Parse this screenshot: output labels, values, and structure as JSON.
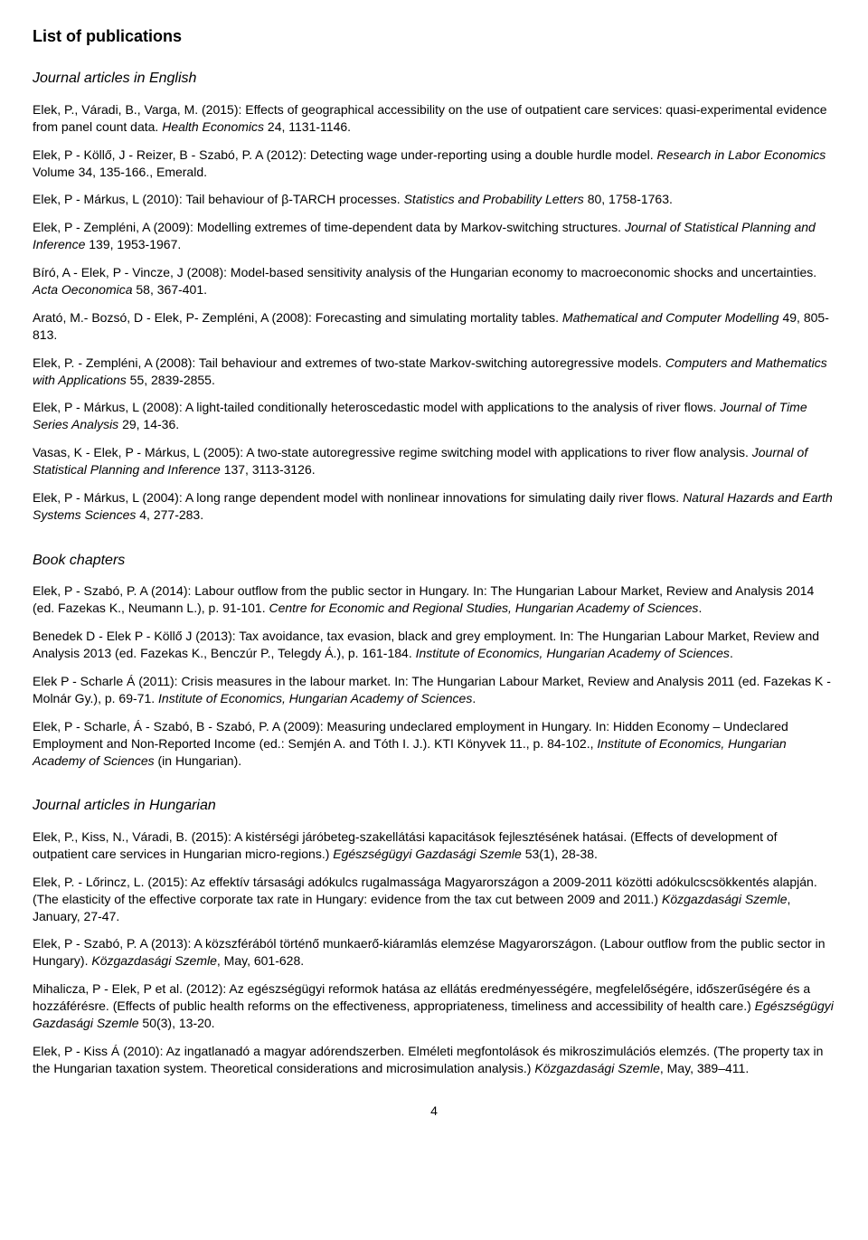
{
  "title": "List of publications",
  "pageNumber": "4",
  "sections": [
    {
      "heading": "Journal articles in English",
      "entries": [
        {
          "plain1": "Elek, P., Váradi, B., Varga, M. (2015): Effects of geographical accessibility on the use of outpatient care services: quasi-experimental evidence from panel count data. ",
          "ital": "Health Economics",
          "plain2": " 24, 1131-1146."
        },
        {
          "plain1": "Elek, P - Köllő, J - Reizer, B - Szabó, P. A (2012): Detecting wage under-reporting using a double hurdle model. ",
          "ital": "Research in Labor Economics",
          "plain2": " Volume 34, 135-166., Emerald."
        },
        {
          "plain1": "Elek, P - Márkus, L (2010): Tail behaviour of β-TARCH processes. ",
          "ital": "Statistics and Probability Letters",
          "plain2": " 80, 1758-1763."
        },
        {
          "plain1": "Elek, P - Zempléni, A (2009): Modelling extremes of time-dependent data by Markov-switching structures. ",
          "ital": "Journal of Statistical Planning and Inference",
          "plain2": " 139, 1953-1967."
        },
        {
          "plain1": "Bíró, A - Elek, P - Vincze, J (2008): Model-based sensitivity analysis of the Hungarian economy to macroeconomic shocks and uncertainties. ",
          "ital": "Acta Oeconomica",
          "plain2": " 58, 367-401."
        },
        {
          "plain1": "Arató, M.- Bozsó, D - Elek, P- Zempléni, A (2008): Forecasting and simulating mortality tables. ",
          "ital": "Mathematical and Computer Modelling",
          "plain2": " 49, 805-813."
        },
        {
          "plain1": "Elek, P. - Zempléni, A (2008): Tail behaviour and extremes of two-state Markov-switching autoregressive models. ",
          "ital": "Computers and Mathematics with Applications",
          "plain2": " 55, 2839-2855."
        },
        {
          "plain1": "Elek, P - Márkus, L (2008): A light-tailed conditionally heteroscedastic model with applications to the analysis of river flows. ",
          "ital": "Journal of Time Series Analysis",
          "plain2": " 29, 14-36."
        },
        {
          "plain1": "Vasas, K - Elek, P - Márkus, L (2005): A two-state autoregressive regime switching model with applications to river flow analysis. ",
          "ital": "Journal of Statistical Planning and Inference",
          "plain2": " 137, 3113-3126."
        },
        {
          "plain1": "Elek, P - Márkus, L (2004): A long range dependent model with nonlinear innovations for simulating daily river flows. ",
          "ital": "Natural Hazards and Earth Systems Sciences",
          "plain2": " 4, 277-283."
        }
      ]
    },
    {
      "heading": "Book chapters",
      "entries": [
        {
          "plain1": "Elek, P - Szabó, P. A (2014): Labour outflow from the public sector in Hungary. In: The Hungarian Labour Market, Review and Analysis 2014 (ed. Fazekas K., Neumann L.), p. 91-101. ",
          "ital": "Centre for Economic and Regional Studies, Hungarian Academy of Sciences",
          "plain2": "."
        },
        {
          "plain1": "Benedek D - Elek P - Köllő J (2013): Tax avoidance, tax evasion, black and grey employment. In: The Hungarian Labour Market, Review and Analysis 2013 (ed. Fazekas K., Benczúr P., Telegdy Á.), p. 161-184. ",
          "ital": "Institute of Economics, Hungarian Academy of Sciences",
          "plain2": "."
        },
        {
          "plain1": "Elek P - Scharle Á (2011): Crisis measures in the labour market. In: The Hungarian Labour Market, Review and Analysis 2011 (ed. Fazekas K - Molnár Gy.), p. 69-71. ",
          "ital": "Institute of Economics, Hungarian Academy of Sciences",
          "plain2": "."
        },
        {
          "plain1": "Elek, P - Scharle, Á - Szabó, B - Szabó, P. A (2009): Measuring undeclared employment in Hungary. In: Hidden Economy – Undeclared Employment and Non-Reported Income (ed.: Semjén A. and Tóth I. J.). KTI Könyvek 11., p. 84-102., ",
          "ital": "Institute of Economics, Hungarian Academy of Sciences",
          "plain2": " (in Hungarian)."
        }
      ]
    },
    {
      "heading": "Journal articles in Hungarian",
      "entries": [
        {
          "plain1": "Elek, P., Kiss, N., Váradi, B. (2015): A kistérségi járóbeteg-szakellátási kapacitások fejlesztésének hatásai. (Effects of development of outpatient care services in Hungarian micro-regions.) ",
          "ital": "Egészségügyi Gazdasági Szemle",
          "plain2": " 53(1), 28-38."
        },
        {
          "plain1": "Elek, P. - Lőrincz, L. (2015): Az effektív társasági adókulcs rugalmassága Magyarországon a 2009-2011 közötti adókulcscsökkentés alapján. (The elasticity of the effective corporate tax rate in Hungary: evidence from the tax cut between 2009 and 2011.) ",
          "ital": "Közgazdasági Szemle",
          "plain2": ", January, 27-47."
        },
        {
          "plain1": "Elek, P - Szabó, P. A (2013): A közszférából történő munkaerő-kiáramlás elemzése Magyarországon. (Labour outflow from the public sector in Hungary). ",
          "ital": "Közgazdasági Szemle",
          "plain2": ", May, 601-628."
        },
        {
          "plain1": "Mihalicza, P - Elek, P et al. (2012): Az egészségügyi reformok hatása az ellátás eredményességére, megfelelőségére, időszerűségére és a hozzáférésre. (Effects of public health reforms on the effectiveness, appropriateness, timeliness and accessibility of health care.) ",
          "ital": "Egészségügyi Gazdasági Szemle",
          "plain2": " 50(3), 13-20."
        },
        {
          "plain1": "Elek, P - Kiss Á (2010): Az ingatlanadó a magyar adórendszerben. Elméleti megfontolások és mikroszimulációs elemzés. (The property tax in the Hungarian taxation system. Theoretical considerations and microsimulation analysis.) ",
          "ital": "Közgazdasági Szemle",
          "plain2": ", May, 389–411."
        }
      ]
    }
  ]
}
